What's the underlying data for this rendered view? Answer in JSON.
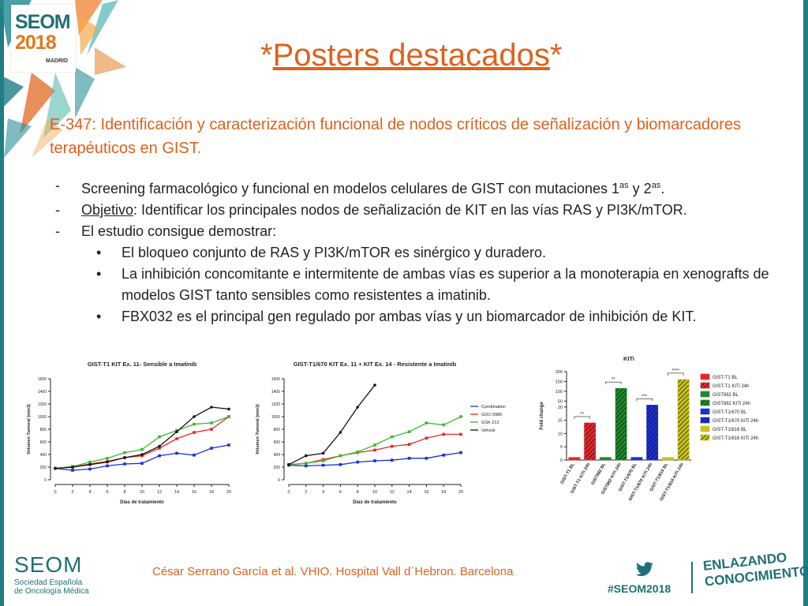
{
  "header": {
    "logo": {
      "name": "SEOM",
      "year": "2018",
      "city": "MADRID"
    },
    "title_star_left": "*",
    "title": "Posters destacados",
    "title_star_right": "*"
  },
  "poster": {
    "title": "E-347: Identificación y caracterización funcional de nodos críticos de señalización y biomarcadores terapéuticos en GIST.",
    "bullets": {
      "marker": "-",
      "b1_text": "Screening farmacológico y funcional en modelos celulares de GIST con mutaciones 1",
      "b1_sup1": "as",
      "b1_mid": " y 2",
      "b1_sup2": "as",
      "b1_end": ".",
      "b2_label": "Objetivo",
      "b2_text": ": Identificar los principales nodos de señalización de KIT en las vías RAS y PI3K/mTOR.",
      "b3_text": "El estudio consigue demostrar:"
    },
    "subbullets": {
      "marker": "•",
      "s1": "El bloqueo conjunto de RAS y PI3K/mTOR es sinérgico y duradero.",
      "s2": "La inhibición concomitante e intermitente de ambas vías es superior a la monoterapia en xenografts de modelos GIST tanto sensibles como resistentes a imatinib.",
      "s3": "FBX032 es el principal gen regulado por ambas vías y un biomarcador de inhibición de KIT."
    }
  },
  "colors": {
    "orange": "#e0601c",
    "teal": "#1f6f78",
    "series": [
      "#1a2fd6",
      "#e5272c",
      "#3cb82f",
      "#111111"
    ]
  },
  "chart_data": [
    {
      "type": "line",
      "title": "GIST-T1 KIT Ex. 11- Sensible a Imatinib",
      "xlabel": "Días de tratamiento",
      "ylabel": "Volumen Tumoral (mm3)",
      "ylim": [
        0,
        1600
      ],
      "x": [
        0,
        2,
        4,
        6,
        8,
        10,
        12,
        14,
        16,
        18,
        20
      ],
      "x_ticks": [
        "0",
        "2",
        "4",
        "6",
        "8",
        "10",
        "12",
        "14",
        "16",
        "18",
        "20"
      ],
      "y_ticks": [
        "0",
        "200",
        "400",
        "600",
        "800",
        "1000",
        "1200",
        "1400",
        "1600"
      ],
      "series": [
        {
          "name": "Combination",
          "values": [
            180,
            150,
            170,
            220,
            250,
            260,
            380,
            420,
            390,
            500,
            550
          ]
        },
        {
          "name": "GDC-0980",
          "values": [
            180,
            200,
            250,
            290,
            350,
            380,
            500,
            650,
            750,
            800,
            1000
          ]
        },
        {
          "name": "GSK-212",
          "values": [
            180,
            210,
            280,
            340,
            430,
            480,
            680,
            780,
            880,
            900,
            1000
          ]
        },
        {
          "name": "Vehicle",
          "values": [
            180,
            200,
            240,
            280,
            350,
            400,
            530,
            760,
            1000,
            1150,
            1120
          ]
        }
      ]
    },
    {
      "type": "line",
      "title": "GIST-T1/670 KIT Ex. 11 + KIT Ex. 14 - Resistente a Imatinib",
      "xlabel": "Días de tratamiento",
      "ylabel": "Volumen Tumoral (mm3)",
      "ylim": [
        0,
        1600
      ],
      "x": [
        0,
        2,
        4,
        6,
        8,
        10,
        12,
        14,
        16,
        18,
        20
      ],
      "x_ticks": [
        "0",
        "2",
        "4",
        "6",
        "8",
        "10",
        "12",
        "14",
        "16",
        "18",
        "20"
      ],
      "y_ticks": [
        "0",
        "200",
        "400",
        "600",
        "800",
        "1000",
        "1200",
        "1400",
        "1600"
      ],
      "legend": [
        "Combination",
        "GDC-0980",
        "GSK-212",
        "Vehicle"
      ],
      "series": [
        {
          "name": "Combination",
          "values": [
            230,
            220,
            230,
            240,
            280,
            300,
            310,
            340,
            340,
            390,
            430
          ]
        },
        {
          "name": "GDC-0980",
          "values": [
            240,
            260,
            320,
            380,
            430,
            470,
            530,
            560,
            660,
            720,
            720
          ]
        },
        {
          "name": "GSK-212",
          "values": [
            240,
            260,
            300,
            380,
            440,
            550,
            680,
            760,
            900,
            870,
            1000
          ]
        },
        {
          "name": "Vehicle",
          "values": [
            240,
            380,
            420,
            750,
            1150,
            1500,
            null,
            null,
            null,
            null,
            null
          ]
        }
      ]
    },
    {
      "type": "bar",
      "title": "KITi",
      "ylabel": "Fold change",
      "y_ticks": [
        "0",
        "5",
        "10",
        "15",
        "20",
        "50",
        "100",
        "150",
        "200"
      ],
      "categories": [
        "GIST-T1 BL",
        "GIST-T1 KITi 24h",
        "GIST882 BL",
        "GIST882 KITi 24h",
        "GIST-T1/670 BL",
        "GIST-T1/670 KITi 24h",
        "GIST-T1/816 BL",
        "GIST-T1/816 KITi 24h"
      ],
      "values": [
        1,
        14,
        1,
        115,
        1,
        30,
        1,
        160
      ],
      "significance": [
        "**",
        "**",
        "***",
        "****"
      ],
      "legend": [
        "GIST-T1 BL",
        "GIST-T1 KITi 24h",
        "GIST882 BL",
        "GIST882 KITi 24h",
        "GIST-T1/670 BL",
        "GIST-T1/670 KITi 24h",
        "GIST-T1/816 BL",
        "GIST-T1/816 KITi 24h"
      ],
      "colors": [
        "#e5272c",
        "#e5272c",
        "#1d8a2a",
        "#1d8a2a",
        "#1a2fd6",
        "#1a2fd6",
        "#c9c21a",
        "#c9c21a"
      ]
    }
  ],
  "footer": {
    "brand": "SEOM",
    "org_line1": "Sociedad Española",
    "org_line2": "de Oncología Médica",
    "credit": "César Serrano García et al. VHIO. Hospital Vall d´Hebron. Barcelona",
    "hashtag": "#SEOM2018",
    "motto_line1": "ENLAZANDO",
    "motto_line2": "CONOCIMIENTO"
  }
}
